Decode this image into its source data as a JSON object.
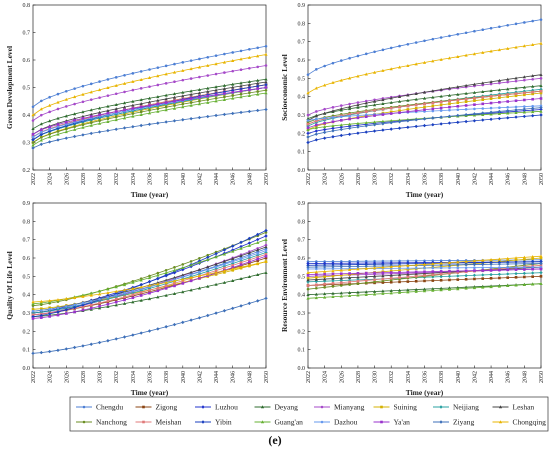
{
  "caption": "(e)",
  "colors": {
    "Chengdu": "#4d7fd4",
    "Zigong": "#8b4513",
    "Luzhou": "#2233cc",
    "Deyang": "#2e6b2e",
    "Mianyang": "#a64ac9",
    "Suining": "#d4b200",
    "Neijiang": "#28a0a0",
    "Leshan": "#444444",
    "Nanchong": "#6b8e23",
    "Meishan": "#e07a7a",
    "Yibin": "#1a3fbf",
    "Guang'an": "#66b032",
    "Dazhou": "#6699ee",
    "Ya'an": "#9932cc",
    "Ziyang": "#3d6fb8",
    "Chongqing": "#e8b400"
  },
  "legend": {
    "entries": [
      "Chengdu",
      "Zigong",
      "Luzhou",
      "Deyang",
      "Mianyang",
      "Suining",
      "Neijiang",
      "Leshan",
      "Nanchong",
      "Meishan",
      "Yibin",
      "Guang'an",
      "Dazhou",
      "Ya'an",
      "Ziyang",
      "Chongqing"
    ]
  },
  "chart_data": [
    {
      "type": "line",
      "title": "",
      "xlabel": "Time (year)",
      "ylabel": "Green Development Level",
      "ylim": [
        0.2,
        0.8
      ],
      "yticks": [
        "0.2",
        "0.3",
        "0.4",
        "0.5",
        "0.6",
        "0.7",
        "0.8"
      ],
      "xticks": [
        "2022",
        "2024",
        "2026",
        "2028",
        "2030",
        "2032",
        "2034",
        "2036",
        "2038",
        "2040",
        "2042",
        "2044",
        "2046",
        "2048",
        "2050"
      ],
      "x_range": [
        2022,
        2050
      ],
      "series": [
        {
          "name": "Chengdu",
          "start": 0.43,
          "end": 0.65,
          "shape": "concave"
        },
        {
          "name": "Zigong",
          "start": 0.32,
          "end": 0.51,
          "shape": "concave"
        },
        {
          "name": "Luzhou",
          "start": 0.31,
          "end": 0.5,
          "shape": "concave"
        },
        {
          "name": "Deyang",
          "start": 0.35,
          "end": 0.53,
          "shape": "concave"
        },
        {
          "name": "Mianyang",
          "start": 0.38,
          "end": 0.58,
          "shape": "concave"
        },
        {
          "name": "Suining",
          "start": 0.3,
          "end": 0.5,
          "shape": "concave"
        },
        {
          "name": "Neijiang",
          "start": 0.31,
          "end": 0.5,
          "shape": "concave"
        },
        {
          "name": "Leshan",
          "start": 0.33,
          "end": 0.52,
          "shape": "concave"
        },
        {
          "name": "Nanchong",
          "start": 0.3,
          "end": 0.49,
          "shape": "concave"
        },
        {
          "name": "Meishan",
          "start": 0.32,
          "end": 0.51,
          "shape": "concave"
        },
        {
          "name": "Yibin",
          "start": 0.31,
          "end": 0.51,
          "shape": "concave"
        },
        {
          "name": "Guang'an",
          "start": 0.29,
          "end": 0.48,
          "shape": "concave"
        },
        {
          "name": "Dazhou",
          "start": 0.32,
          "end": 0.5,
          "shape": "concave"
        },
        {
          "name": "Ya'an",
          "start": 0.33,
          "end": 0.5,
          "shape": "concave"
        },
        {
          "name": "Ziyang",
          "start": 0.28,
          "end": 0.42,
          "shape": "concave"
        },
        {
          "name": "Chongqing",
          "start": 0.4,
          "end": 0.62,
          "shape": "concave"
        }
      ]
    },
    {
      "type": "line",
      "title": "",
      "xlabel": "Time (year)",
      "ylabel": "Socioeconomic Level",
      "ylim": [
        0.0,
        0.9
      ],
      "yticks": [
        "0.0",
        "0.1",
        "0.2",
        "0.3",
        "0.4",
        "0.5",
        "0.6",
        "0.7",
        "0.8",
        "0.9"
      ],
      "xticks": [
        "2022",
        "2024",
        "2026",
        "2028",
        "2030",
        "2032",
        "2034",
        "2036",
        "2038",
        "2040",
        "2042",
        "2044",
        "2046",
        "2048",
        "2050"
      ],
      "x_range": [
        2022,
        2050
      ],
      "series": [
        {
          "name": "Chengdu",
          "start": 0.52,
          "end": 0.82,
          "shape": "concave"
        },
        {
          "name": "Zigong",
          "start": 0.25,
          "end": 0.43,
          "shape": "concave"
        },
        {
          "name": "Luzhou",
          "start": 0.2,
          "end": 0.33,
          "shape": "concave"
        },
        {
          "name": "Deyang",
          "start": 0.28,
          "end": 0.46,
          "shape": "concave"
        },
        {
          "name": "Mianyang",
          "start": 0.3,
          "end": 0.5,
          "shape": "concave"
        },
        {
          "name": "Suining",
          "start": 0.22,
          "end": 0.42,
          "shape": "concave"
        },
        {
          "name": "Neijiang",
          "start": 0.24,
          "end": 0.44,
          "shape": "concave"
        },
        {
          "name": "Leshan",
          "start": 0.27,
          "end": 0.52,
          "shape": "concave"
        },
        {
          "name": "Nanchong",
          "start": 0.26,
          "end": 0.43,
          "shape": "concave"
        },
        {
          "name": "Meishan",
          "start": 0.25,
          "end": 0.43,
          "shape": "concave"
        },
        {
          "name": "Yibin",
          "start": 0.15,
          "end": 0.3,
          "shape": "concave"
        },
        {
          "name": "Guang'an",
          "start": 0.22,
          "end": 0.32,
          "shape": "concave"
        },
        {
          "name": "Dazhou",
          "start": 0.27,
          "end": 0.35,
          "shape": "concave"
        },
        {
          "name": "Ya'an",
          "start": 0.23,
          "end": 0.39,
          "shape": "concave"
        },
        {
          "name": "Ziyang",
          "start": 0.18,
          "end": 0.34,
          "shape": "concave"
        },
        {
          "name": "Chongqing",
          "start": 0.42,
          "end": 0.69,
          "shape": "concave"
        }
      ]
    },
    {
      "type": "line",
      "title": "",
      "xlabel": "Time (year)",
      "ylabel": "Quality Of Life Level",
      "ylim": [
        0.0,
        0.9
      ],
      "yticks": [
        "0.0",
        "0.1",
        "0.2",
        "0.3",
        "0.4",
        "0.5",
        "0.6",
        "0.7",
        "0.8",
        "0.9"
      ],
      "xticks": [
        "2022",
        "2024",
        "2026",
        "2028",
        "2030",
        "2032",
        "2034",
        "2036",
        "2038",
        "2040",
        "2042",
        "2044",
        "2046",
        "2048",
        "2050"
      ],
      "x_range": [
        2022,
        2050
      ],
      "series": [
        {
          "name": "Chengdu",
          "start": 0.3,
          "end": 0.65,
          "shape": "convex"
        },
        {
          "name": "Zigong",
          "start": 0.29,
          "end": 0.6,
          "shape": "convex"
        },
        {
          "name": "Luzhou",
          "start": 0.3,
          "end": 0.72,
          "shape": "convex"
        },
        {
          "name": "Deyang",
          "start": 0.28,
          "end": 0.52,
          "shape": "convex"
        },
        {
          "name": "Mianyang",
          "start": 0.29,
          "end": 0.67,
          "shape": "convex"
        },
        {
          "name": "Suining",
          "start": 0.32,
          "end": 0.58,
          "shape": "convex"
        },
        {
          "name": "Neijiang",
          "start": 0.3,
          "end": 0.63,
          "shape": "convex"
        },
        {
          "name": "Leshan",
          "start": 0.31,
          "end": 0.66,
          "shape": "convex"
        },
        {
          "name": "Nanchong",
          "start": 0.34,
          "end": 0.74,
          "shape": "convex"
        },
        {
          "name": "Meishan",
          "start": 0.29,
          "end": 0.62,
          "shape": "convex"
        },
        {
          "name": "Yibin",
          "start": 0.28,
          "end": 0.75,
          "shape": "convex"
        },
        {
          "name": "Guang'an",
          "start": 0.35,
          "end": 0.7,
          "shape": "convex"
        },
        {
          "name": "Dazhou",
          "start": 0.31,
          "end": 0.64,
          "shape": "convex"
        },
        {
          "name": "Ya'an",
          "start": 0.27,
          "end": 0.61,
          "shape": "convex"
        },
        {
          "name": "Ziyang",
          "start": 0.08,
          "end": 0.38,
          "shape": "convex"
        },
        {
          "name": "Chongqing",
          "start": 0.36,
          "end": 0.58,
          "shape": "convex"
        }
      ]
    },
    {
      "type": "line",
      "title": "",
      "xlabel": "Time (year)",
      "ylabel": "Resource Environment Level",
      "ylim": [
        0.0,
        0.9
      ],
      "yticks": [
        "0.0",
        "0.1",
        "0.2",
        "0.3",
        "0.4",
        "0.5",
        "0.6",
        "0.7",
        "0.8",
        "0.9"
      ],
      "xticks": [
        "2022",
        "2024",
        "2026",
        "2028",
        "2030",
        "2032",
        "2034",
        "2036",
        "2038",
        "2040",
        "2042",
        "2044",
        "2046",
        "2048",
        "2050"
      ],
      "x_range": [
        2022,
        2050
      ],
      "series": [
        {
          "name": "Chengdu",
          "start": 0.58,
          "end": 0.59,
          "shape": "linear"
        },
        {
          "name": "Zigong",
          "start": 0.45,
          "end": 0.5,
          "shape": "linear"
        },
        {
          "name": "Luzhou",
          "start": 0.57,
          "end": 0.58,
          "shape": "linear"
        },
        {
          "name": "Deyang",
          "start": 0.4,
          "end": 0.46,
          "shape": "linear"
        },
        {
          "name": "Mianyang",
          "start": 0.5,
          "end": 0.54,
          "shape": "linear"
        },
        {
          "name": "Suining",
          "start": 0.49,
          "end": 0.6,
          "shape": "linear"
        },
        {
          "name": "Neijiang",
          "start": 0.47,
          "end": 0.52,
          "shape": "linear"
        },
        {
          "name": "Leshan",
          "start": 0.48,
          "end": 0.55,
          "shape": "linear"
        },
        {
          "name": "Nanchong",
          "start": 0.43,
          "end": 0.57,
          "shape": "linear"
        },
        {
          "name": "Meishan",
          "start": 0.45,
          "end": 0.56,
          "shape": "linear"
        },
        {
          "name": "Yibin",
          "start": 0.56,
          "end": 0.58,
          "shape": "linear"
        },
        {
          "name": "Guang'an",
          "start": 0.38,
          "end": 0.46,
          "shape": "linear"
        },
        {
          "name": "Dazhou",
          "start": 0.54,
          "end": 0.55,
          "shape": "linear"
        },
        {
          "name": "Ya'an",
          "start": 0.51,
          "end": 0.54,
          "shape": "linear"
        },
        {
          "name": "Ziyang",
          "start": 0.55,
          "end": 0.57,
          "shape": "linear"
        },
        {
          "name": "Chongqing",
          "start": 0.52,
          "end": 0.61,
          "shape": "linear"
        }
      ]
    }
  ]
}
